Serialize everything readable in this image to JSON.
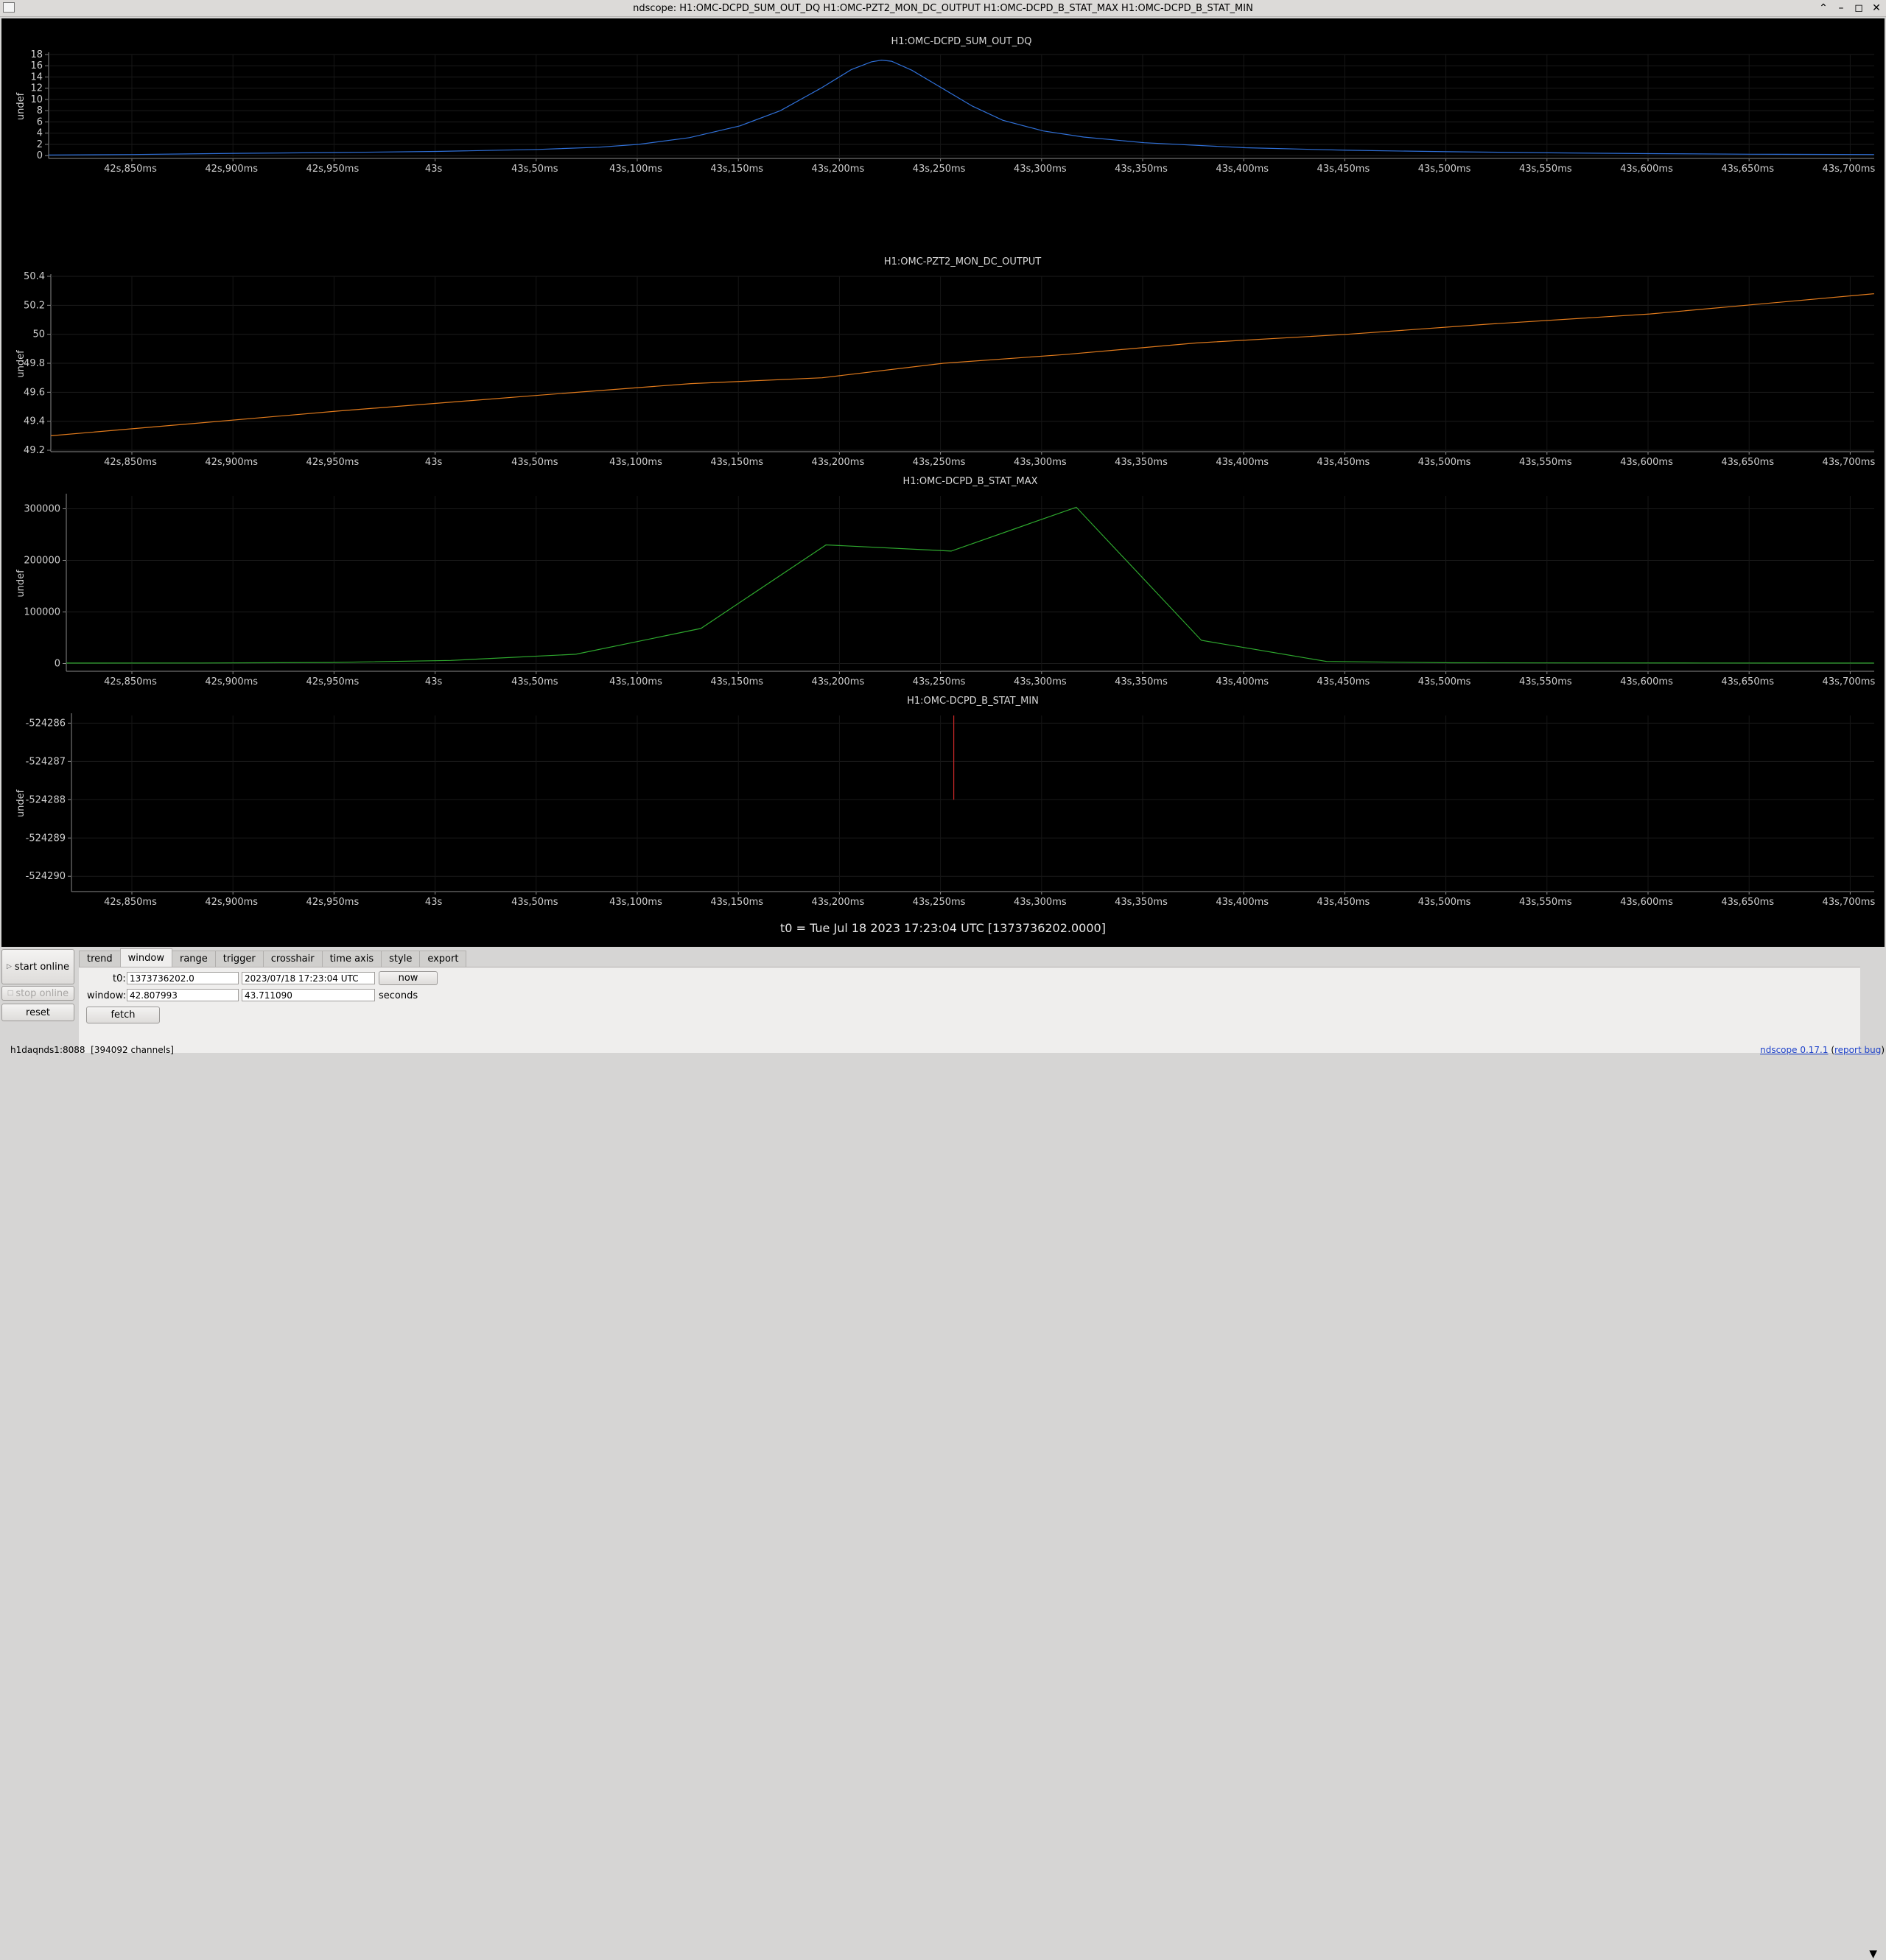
{
  "window": {
    "title": "ndscope: H1:OMC-DCPD_SUM_OUT_DQ H1:OMC-PZT2_MON_DC_OUTPUT H1:OMC-DCPD_B_STAT_MAX H1:OMC-DCPD_B_STAT_MIN",
    "controls": {
      "maximize": "⌃",
      "minimize": "–",
      "restore": "◻",
      "close": "✕"
    }
  },
  "x_ticks": [
    "42s,850ms",
    "42s,900ms",
    "42s,950ms",
    "43s",
    "43s,50ms",
    "43s,100ms",
    "43s,150ms",
    "43s,200ms",
    "43s,250ms",
    "43s,300ms",
    "43s,350ms",
    "43s,400ms",
    "43s,450ms",
    "43s,500ms",
    "43s,550ms",
    "43s,600ms",
    "43s,650ms",
    "43s,700ms"
  ],
  "chart_data": [
    {
      "type": "line",
      "title": "H1:OMC-DCPD_SUM_OUT_DQ",
      "ylabel": "undef",
      "color": "#2f6fd6",
      "xlim": [
        42.807993,
        43.71109
      ],
      "ylim": [
        -0.5,
        18
      ],
      "yticks": [
        "0",
        "2",
        "4",
        "6",
        "8",
        "10",
        "12",
        "14",
        "16",
        "18"
      ],
      "x": [
        42.808,
        42.85,
        42.9,
        42.95,
        43.0,
        43.05,
        43.08,
        43.1,
        43.125,
        43.15,
        43.17,
        43.19,
        43.205,
        43.215,
        43.22,
        43.225,
        43.235,
        43.25,
        43.265,
        43.28,
        43.3,
        43.32,
        43.35,
        43.4,
        43.45,
        43.5,
        43.55,
        43.6,
        43.65,
        43.711
      ],
      "y": [
        0.1,
        0.2,
        0.4,
        0.55,
        0.75,
        1.1,
        1.5,
        2.0,
        3.2,
        5.3,
        8.0,
        12.0,
        15.3,
        16.7,
        17.0,
        16.8,
        15.2,
        12.0,
        8.8,
        6.3,
        4.4,
        3.3,
        2.3,
        1.4,
        0.95,
        0.7,
        0.5,
        0.35,
        0.25,
        0.2
      ]
    },
    {
      "type": "line",
      "title": "H1:OMC-PZT2_MON_DC_OUTPUT",
      "ylabel": "undef",
      "color": "#e07a1c",
      "xlim": [
        42.807993,
        43.71109
      ],
      "ylim": [
        49.19,
        50.4
      ],
      "yticks": [
        "49.2",
        "49.4",
        "49.6",
        "49.8",
        "50",
        "50.2",
        "50.4"
      ],
      "x": [
        42.808,
        42.95,
        43.05,
        43.125,
        43.19,
        43.25,
        43.31,
        43.375,
        43.45,
        43.52,
        43.6,
        43.711
      ],
      "y": [
        49.3,
        49.47,
        49.58,
        49.66,
        49.7,
        49.8,
        49.86,
        49.94,
        50.0,
        50.07,
        50.14,
        50.28
      ]
    },
    {
      "type": "line",
      "title": "H1:OMC-DCPD_B_STAT_MAX",
      "ylabel": "undef",
      "color": "#2ea82e",
      "xlim": [
        42.807993,
        43.71109
      ],
      "ylim": [
        -15000,
        325000
      ],
      "yticks": [
        "0",
        "100000",
        "200000",
        "300000"
      ],
      "x": [
        42.808,
        42.875,
        42.94,
        43.0,
        43.0625,
        43.125,
        43.1875,
        43.25,
        43.3125,
        43.375,
        43.4375,
        43.5,
        43.5625,
        43.625,
        43.711
      ],
      "y": [
        800,
        1000,
        2000,
        6000,
        18000,
        68000,
        230000,
        218000,
        303000,
        45000,
        4000,
        1500,
        1200,
        1000,
        900
      ]
    },
    {
      "type": "line",
      "title": "H1:OMC-DCPD_B_STAT_MIN",
      "ylabel": "undef",
      "color": "#c82828",
      "xlim": [
        42.807993,
        43.71109
      ],
      "ylim": [
        -524290.4,
        -524285.8
      ],
      "yticks": [
        "-524290",
        "-524289",
        "-524288",
        "-524287",
        "-524286"
      ],
      "x": [
        43.25,
        43.25
      ],
      "y": [
        -524285.8,
        -524288
      ]
    }
  ],
  "t0_label": "t0 = Tue Jul 18 2023 17:23:04 UTC [1373736202.0000]",
  "buttons": {
    "start_online": "start online",
    "stop_online": "stop online",
    "reset": "reset",
    "now": "now",
    "fetch": "fetch"
  },
  "tabs": [
    "trend",
    "window",
    "range",
    "trigger",
    "crosshair",
    "time axis",
    "style",
    "export"
  ],
  "active_tab": "window",
  "window_tab": {
    "t0_label": "t0:",
    "t0_gps": "1373736202.0",
    "t0_utc": "2023/07/18 17:23:04 UTC",
    "window_label": "window:",
    "window_start": "42.807993",
    "window_end": "43.711090",
    "units": "seconds"
  },
  "status": {
    "server": "h1daqnds1:8088",
    "channels": "[394092 channels]",
    "version_link": "ndscope 0.17.1",
    "report_bug": "report bug"
  }
}
